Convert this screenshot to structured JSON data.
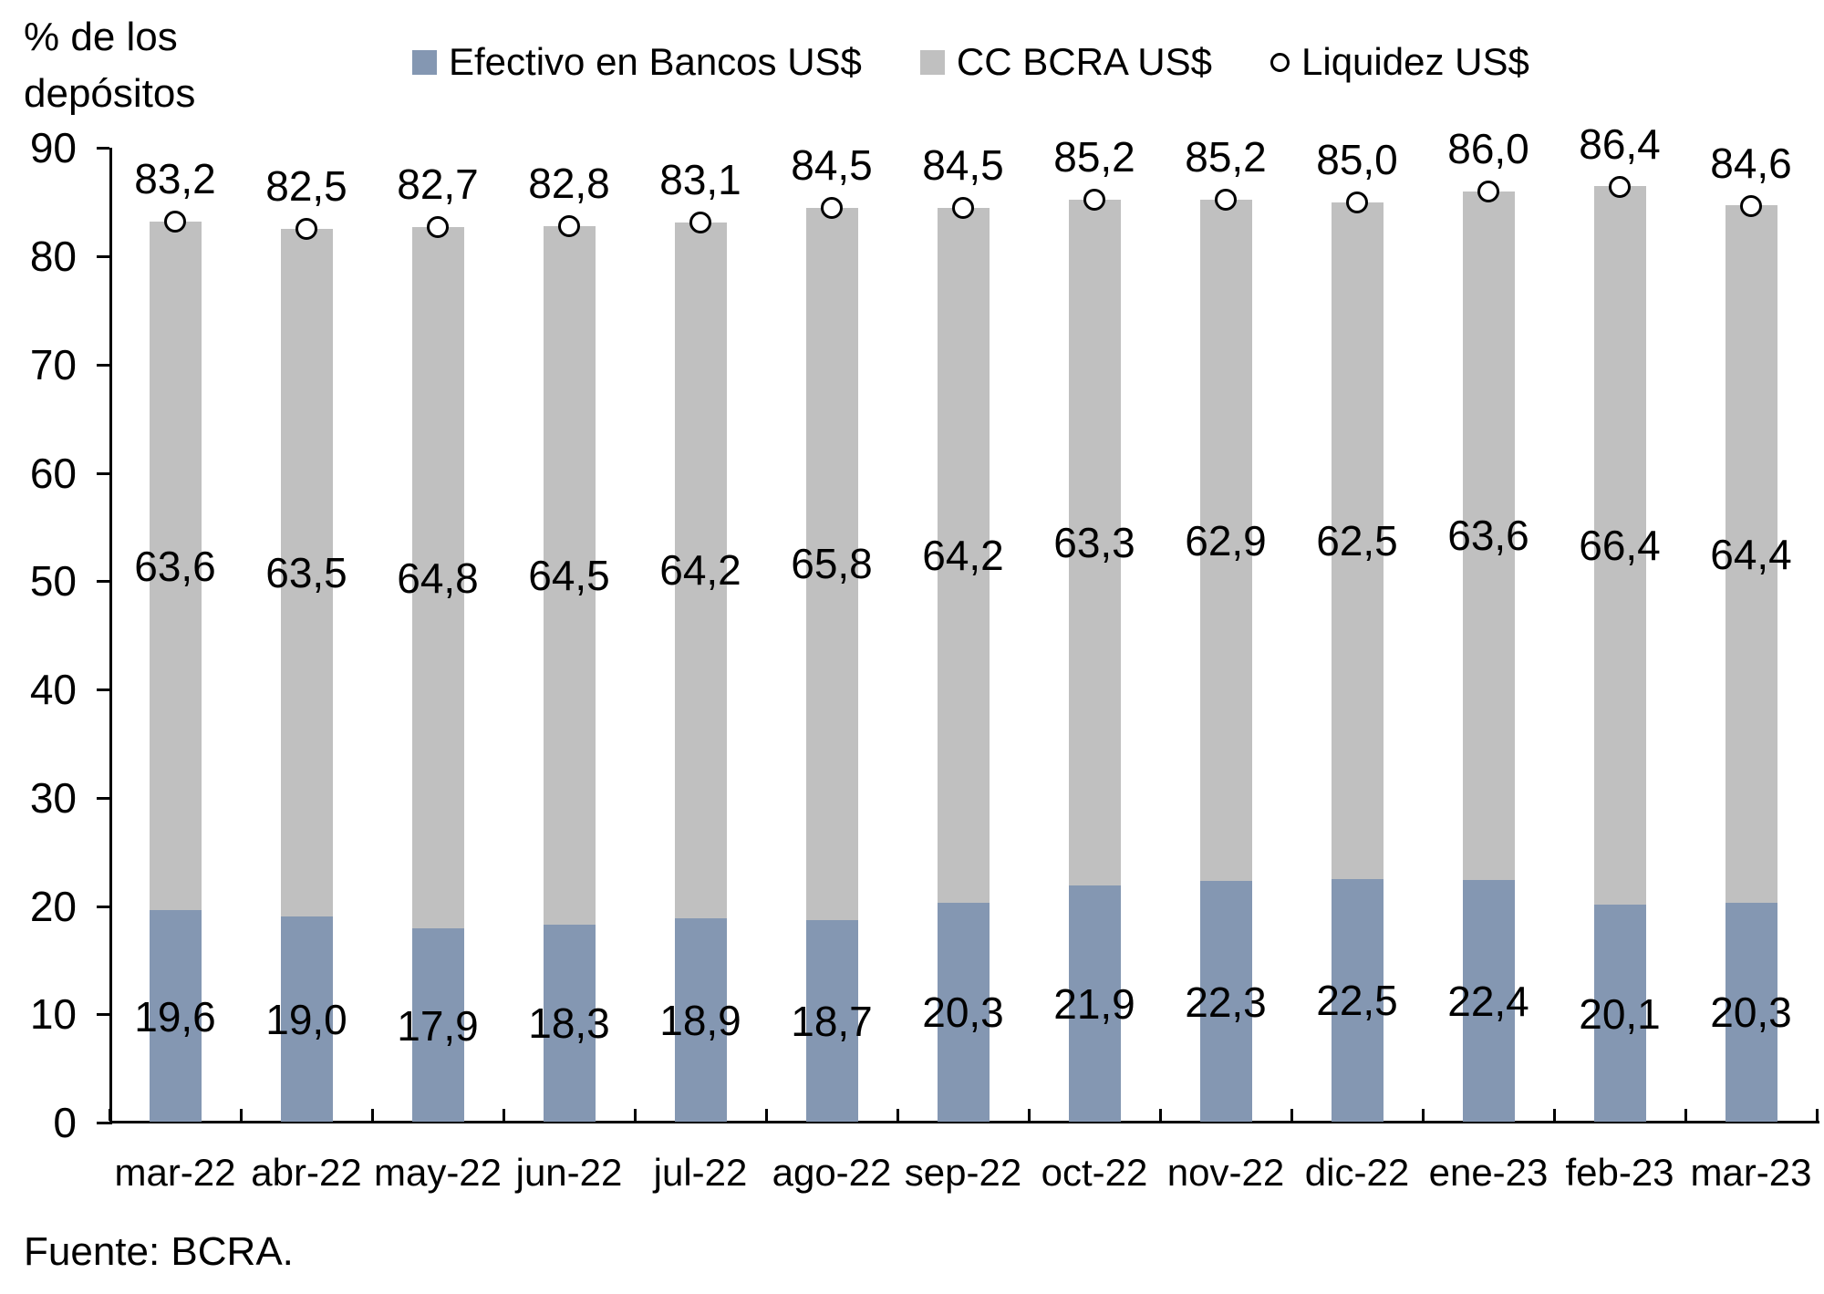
{
  "header": {
    "y_axis_note": "% de los depósitos",
    "source": "Fuente: BCRA."
  },
  "legend": {
    "items": [
      {
        "label": "Efectivo en Bancos US$",
        "marker": "square",
        "color": "#8497b2"
      },
      {
        "label": "CC BCRA US$",
        "marker": "square",
        "color": "#c0c0c0"
      },
      {
        "label": "Liquidez US$",
        "marker": "circle",
        "color": "#ffffff",
        "stroke": "#000000"
      }
    ]
  },
  "chart_data": {
    "type": "bar",
    "stacked": true,
    "title": "",
    "ylabel": "% de los depósitos",
    "xlabel": "",
    "ylim": [
      0,
      90
    ],
    "yticks": [
      0,
      10,
      20,
      30,
      40,
      50,
      60,
      70,
      80,
      90
    ],
    "grid": false,
    "legend_position": "top",
    "decimal_separator": ",",
    "categories": [
      "mar-22",
      "abr-22",
      "may-22",
      "jun-22",
      "jul-22",
      "ago-22",
      "sep-22",
      "oct-22",
      "nov-22",
      "dic-22",
      "ene-23",
      "feb-23",
      "mar-23"
    ],
    "series": [
      {
        "name": "Efectivo en Bancos US$",
        "color": "#8497b2",
        "values": [
          19.6,
          19.0,
          17.9,
          18.3,
          18.9,
          18.7,
          20.3,
          21.9,
          22.3,
          22.5,
          22.4,
          20.1,
          20.3
        ]
      },
      {
        "name": "CC BCRA US$",
        "color": "#c0c0c0",
        "values": [
          63.6,
          63.5,
          64.8,
          64.5,
          64.2,
          65.8,
          64.2,
          63.3,
          62.9,
          62.5,
          63.6,
          66.4,
          64.4
        ]
      }
    ],
    "markers": {
      "name": "Liquidez US$",
      "fill": "#ffffff",
      "stroke": "#000000",
      "values": [
        83.2,
        82.5,
        82.7,
        82.8,
        83.1,
        84.5,
        84.5,
        85.2,
        85.2,
        85.0,
        86.0,
        86.4,
        84.6
      ]
    },
    "source_note": "Fuente: BCRA."
  }
}
